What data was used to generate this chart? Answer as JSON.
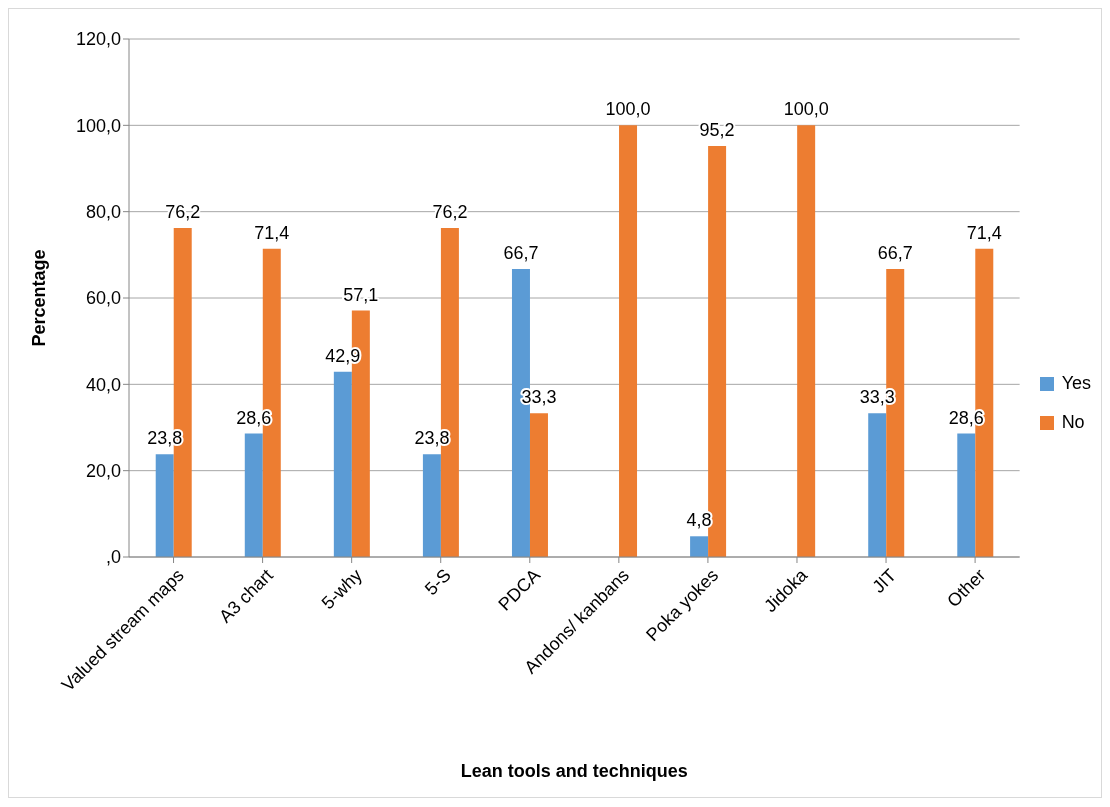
{
  "chart_data": {
    "type": "bar",
    "xlabel": "Lean tools and techniques",
    "ylabel": "Percentage",
    "categories": [
      "Valued stream maps",
      "A3 chart",
      "5-why",
      "5-S",
      "PDCA",
      "Andons/ kanbans",
      "Poka yokes",
      "Jidoka",
      "JIT",
      "Other"
    ],
    "series": [
      {
        "name": "Yes",
        "color": "#5b9bd5",
        "values": [
          23.8,
          28.6,
          42.9,
          23.8,
          66.7,
          null,
          4.8,
          null,
          33.3,
          28.6
        ],
        "value_labels": [
          "23,8",
          "28,6",
          "42,9",
          "23,8",
          "66,7",
          null,
          "4,8",
          null,
          "33,3",
          "28,6"
        ]
      },
      {
        "name": "No",
        "color": "#ed7d31",
        "values": [
          76.2,
          71.4,
          57.1,
          76.2,
          33.3,
          100,
          95.2,
          100,
          66.7,
          71.4
        ],
        "value_labels": [
          "76,2",
          "71,4",
          "57,1",
          "76,2",
          "33,3",
          "100,0",
          "95,2",
          "100,0",
          "66,7",
          "71,4"
        ]
      }
    ],
    "ylim": [
      0,
      120
    ],
    "yticks": [
      {
        "value": 0,
        "label": ",0"
      },
      {
        "value": 20,
        "label": "20,0"
      },
      {
        "value": 40,
        "label": "40,0"
      },
      {
        "value": 60,
        "label": "60,0"
      },
      {
        "value": 80,
        "label": "80,0"
      },
      {
        "value": 100,
        "label": "100,0"
      },
      {
        "value": 120,
        "label": "120,0"
      }
    ],
    "grid": "y",
    "legend": "right"
  }
}
